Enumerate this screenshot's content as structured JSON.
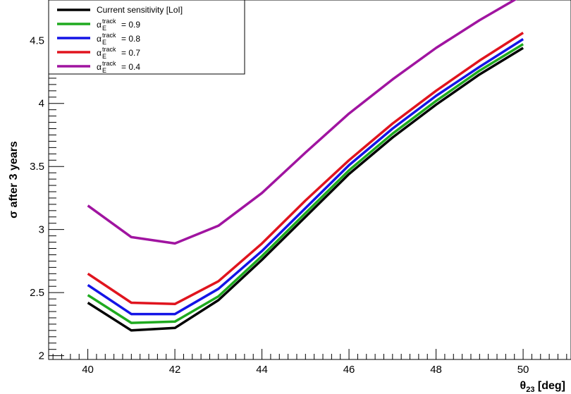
{
  "chart_data": {
    "type": "line",
    "xlabel_symbol": "θ",
    "xlabel_sub": "23",
    "xlabel_unit": " [deg]",
    "ylabel": "σ after 3 years",
    "xlim": [
      39.1,
      51.1
    ],
    "ylim": [
      1.97,
      4.82
    ],
    "x_ticks": [
      40,
      42,
      44,
      46,
      48,
      50
    ],
    "y_ticks": [
      2,
      2.5,
      3,
      3.5,
      4,
      4.5
    ],
    "x_tick_labels": [
      "40",
      "42",
      "44",
      "46",
      "48",
      "50"
    ],
    "y_tick_labels": [
      "2",
      "2.5",
      "3",
      "3.5",
      "4",
      "4.5"
    ],
    "x": [
      40,
      41,
      42,
      43,
      44,
      45,
      46,
      47,
      48,
      49,
      50
    ],
    "legend_position": "top-left",
    "series": [
      {
        "name": "Current sensitivity [LoI]",
        "label_kind": "plain",
        "color": "#000000",
        "values": [
          2.42,
          2.2,
          2.22,
          2.44,
          2.76,
          3.1,
          3.44,
          3.73,
          3.99,
          4.23,
          4.44
        ]
      },
      {
        "name": "= 0.9",
        "label_kind": "alpha",
        "color": "#1faa1f",
        "values": [
          2.48,
          2.26,
          2.27,
          2.47,
          2.79,
          3.13,
          3.47,
          3.76,
          4.02,
          4.26,
          4.47
        ]
      },
      {
        "name": "= 0.8",
        "label_kind": "alpha",
        "color": "#1414e6",
        "values": [
          2.56,
          2.33,
          2.33,
          2.53,
          2.83,
          3.17,
          3.51,
          3.8,
          4.06,
          4.29,
          4.51
        ]
      },
      {
        "name": "= 0.7",
        "label_kind": "alpha",
        "color": "#e0141e",
        "values": [
          2.65,
          2.42,
          2.41,
          2.59,
          2.89,
          3.23,
          3.55,
          3.84,
          4.1,
          4.34,
          4.56
        ]
      },
      {
        "name": "= 0.4",
        "label_kind": "alpha",
        "color": "#a014a0",
        "values": [
          3.19,
          2.94,
          2.89,
          3.03,
          3.29,
          3.61,
          3.92,
          4.19,
          4.44,
          4.66,
          4.86
        ]
      }
    ],
    "alpha_symbol": "α",
    "alpha_sup": "track",
    "alpha_sub": "E"
  }
}
